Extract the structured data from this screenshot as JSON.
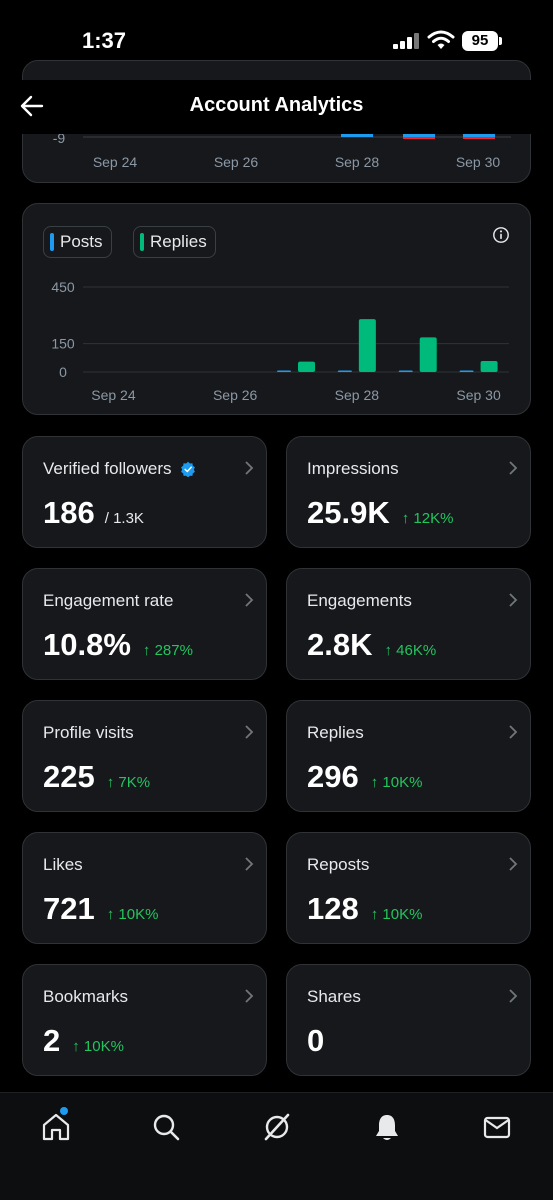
{
  "status": {
    "time": "1:37",
    "battery": "95"
  },
  "header": {
    "title": "Account Analytics"
  },
  "top_chart": {
    "y_ticks": [
      "-9"
    ],
    "x_ticks": [
      "Sep 24",
      "Sep 26",
      "Sep 28",
      "Sep 30"
    ]
  },
  "chart": {
    "legend": [
      {
        "label": "Posts",
        "color": "#1d9bf0"
      },
      {
        "label": "Replies",
        "color": "#00ba7c"
      }
    ],
    "y_ticks": [
      "450",
      "150",
      "0"
    ],
    "x_ticks": [
      "Sep 24",
      "Sep 26",
      "Sep 28",
      "Sep 30"
    ]
  },
  "chart_data": {
    "type": "bar",
    "categories": [
      "Sep 24",
      "Sep 25",
      "Sep 26",
      "Sep 27",
      "Sep 28",
      "Sep 29",
      "Sep 30"
    ],
    "series": [
      {
        "name": "Posts",
        "values": [
          0,
          0,
          0,
          1,
          1,
          1,
          1
        ]
      },
      {
        "name": "Replies",
        "values": [
          0,
          0,
          0,
          55,
          280,
          183,
          58
        ]
      }
    ],
    "ylim": [
      0,
      450
    ],
    "y_ticks": [
      0,
      150,
      450
    ],
    "grid": true,
    "legend_position": "top-left"
  },
  "stats": [
    {
      "label": "Verified followers",
      "value": "186",
      "sub": "/ 1.3K",
      "change": ""
    },
    {
      "label": "Impressions",
      "value": "25.9K",
      "sub": "",
      "change": "↑ 12K%"
    },
    {
      "label": "Engagement rate",
      "value": "10.8%",
      "sub": "",
      "change": "↑ 287%"
    },
    {
      "label": "Engagements",
      "value": "2.8K",
      "sub": "",
      "change": "↑ 46K%"
    },
    {
      "label": "Profile visits",
      "value": "225",
      "sub": "",
      "change": "↑ 7K%"
    },
    {
      "label": "Replies",
      "value": "296",
      "sub": "",
      "change": "↑ 10K%"
    },
    {
      "label": "Likes",
      "value": "721",
      "sub": "",
      "change": "↑ 10K%"
    },
    {
      "label": "Reposts",
      "value": "128",
      "sub": "",
      "change": "↑ 10K%"
    },
    {
      "label": "Bookmarks",
      "value": "2",
      "sub": "",
      "change": "↑ 10K%"
    },
    {
      "label": "Shares",
      "value": "0",
      "sub": "",
      "change": ""
    }
  ],
  "nav": {
    "icons": [
      "home-icon",
      "search-icon",
      "grok-icon",
      "bell-icon",
      "mail-icon"
    ],
    "home_has_notification": true
  }
}
